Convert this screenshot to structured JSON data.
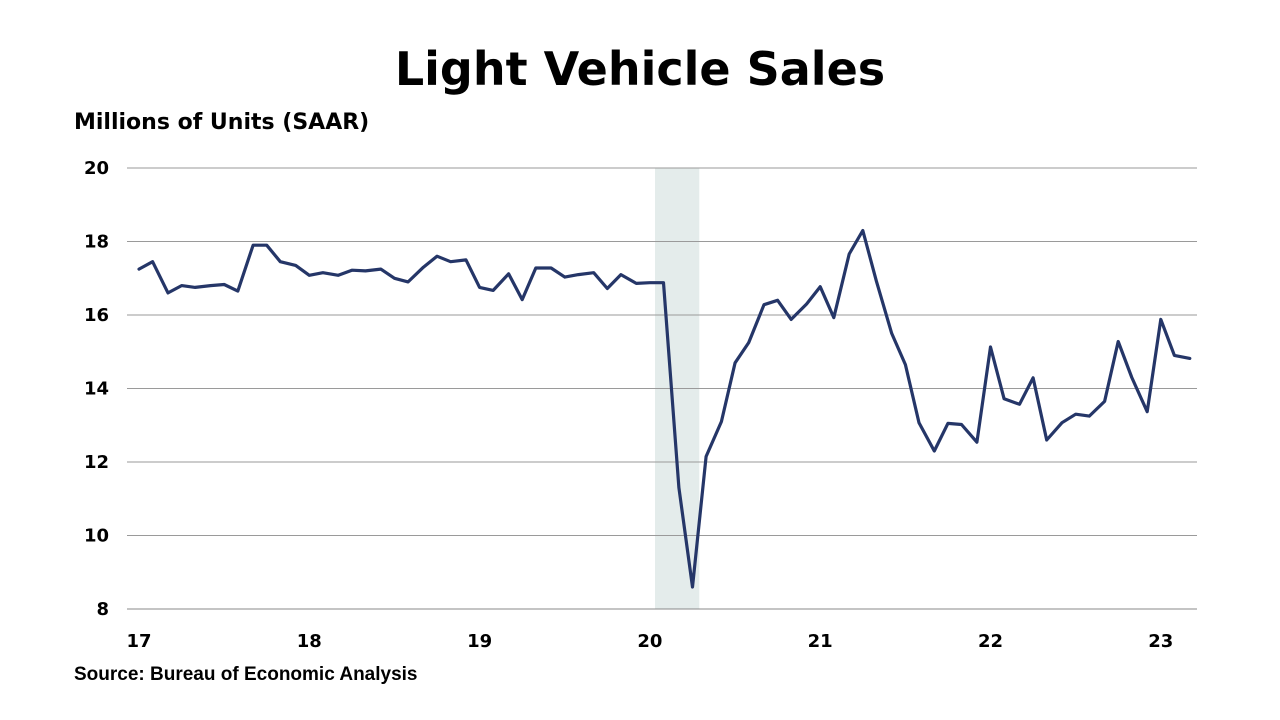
{
  "chart_data": {
    "type": "line",
    "title": "Light Vehicle Sales",
    "ylabel": "Millions of Units (SAAR)",
    "xlabel": "",
    "ylim": [
      8,
      20
    ],
    "yticks": [
      8,
      10,
      12,
      14,
      16,
      18,
      20
    ],
    "xlim": [
      2017,
      2023.2
    ],
    "xticks": [
      {
        "x": 2017,
        "label": "17"
      },
      {
        "x": 2018,
        "label": "18"
      },
      {
        "x": 2019,
        "label": "19"
      },
      {
        "x": 2020,
        "label": "20"
      },
      {
        "x": 2021,
        "label": "21"
      },
      {
        "x": 2022,
        "label": "22"
      },
      {
        "x": 2023,
        "label": "23"
      }
    ],
    "grid": "horizontal",
    "recession_band": [
      2020.03,
      2020.29
    ],
    "colors": {
      "line": "#253668",
      "band": "#e4eceb",
      "grid": "#9a9a9a"
    },
    "series": [
      {
        "values": [
          [
            2017.0,
            17.25
          ],
          [
            2017.08,
            17.45
          ],
          [
            2017.17,
            16.6
          ],
          [
            2017.25,
            16.8
          ],
          [
            2017.33,
            16.75
          ],
          [
            2017.42,
            16.8
          ],
          [
            2017.5,
            16.83
          ],
          [
            2017.58,
            16.65
          ],
          [
            2017.67,
            17.9
          ],
          [
            2017.75,
            17.9
          ],
          [
            2017.83,
            17.45
          ],
          [
            2017.92,
            17.35
          ],
          [
            2018.0,
            17.08
          ],
          [
            2018.08,
            17.15
          ],
          [
            2018.17,
            17.08
          ],
          [
            2018.25,
            17.22
          ],
          [
            2018.33,
            17.2
          ],
          [
            2018.42,
            17.25
          ],
          [
            2018.5,
            17.0
          ],
          [
            2018.58,
            16.9
          ],
          [
            2018.67,
            17.3
          ],
          [
            2018.75,
            17.6
          ],
          [
            2018.83,
            17.45
          ],
          [
            2018.92,
            17.5
          ],
          [
            2019.0,
            16.75
          ],
          [
            2019.08,
            16.67
          ],
          [
            2019.17,
            17.12
          ],
          [
            2019.25,
            16.42
          ],
          [
            2019.33,
            17.28
          ],
          [
            2019.42,
            17.28
          ],
          [
            2019.5,
            17.03
          ],
          [
            2019.58,
            17.1
          ],
          [
            2019.67,
            17.15
          ],
          [
            2019.75,
            16.72
          ],
          [
            2019.83,
            17.1
          ],
          [
            2019.92,
            16.86
          ],
          [
            2020.0,
            16.88
          ],
          [
            2020.08,
            16.88
          ],
          [
            2020.17,
            11.3
          ],
          [
            2020.25,
            8.6
          ],
          [
            2020.33,
            12.15
          ],
          [
            2020.42,
            13.1
          ],
          [
            2020.5,
            14.7
          ],
          [
            2020.58,
            15.25
          ],
          [
            2020.67,
            16.28
          ],
          [
            2020.75,
            16.4
          ],
          [
            2020.83,
            15.88
          ],
          [
            2020.92,
            16.3
          ],
          [
            2021.0,
            16.77
          ],
          [
            2021.08,
            15.93
          ],
          [
            2021.17,
            17.66
          ],
          [
            2021.25,
            18.3
          ],
          [
            2021.33,
            16.92
          ],
          [
            2021.42,
            15.5
          ],
          [
            2021.5,
            14.65
          ],
          [
            2021.58,
            13.07
          ],
          [
            2021.67,
            12.3
          ],
          [
            2021.75,
            13.05
          ],
          [
            2021.83,
            13.02
          ],
          [
            2021.92,
            12.54
          ],
          [
            2022.0,
            15.13
          ],
          [
            2022.08,
            13.72
          ],
          [
            2022.17,
            13.57
          ],
          [
            2022.25,
            14.29
          ],
          [
            2022.33,
            12.6
          ],
          [
            2022.42,
            13.07
          ],
          [
            2022.5,
            13.3
          ],
          [
            2022.58,
            13.25
          ],
          [
            2022.67,
            13.65
          ],
          [
            2022.75,
            15.28
          ],
          [
            2022.83,
            14.3
          ],
          [
            2022.92,
            13.37
          ],
          [
            2023.0,
            15.88
          ],
          [
            2023.08,
            14.9
          ],
          [
            2023.17,
            14.82
          ]
        ]
      }
    ]
  },
  "source": "Source: Bureau of Economic Analysis"
}
